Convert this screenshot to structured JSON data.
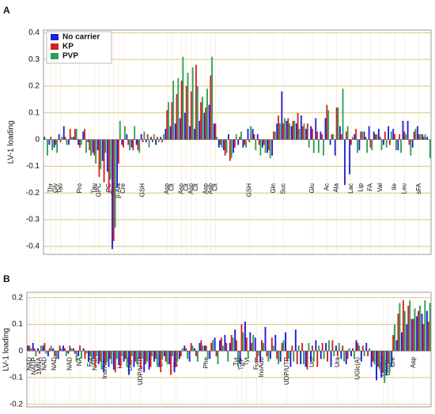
{
  "chart_data": [
    {
      "type": "bar",
      "panel": "A",
      "ylabel": "LV-1 loading",
      "categories": [
        null,
        "Thr",
        "Gly",
        "Tau",
        null,
        null,
        null,
        "Pro",
        null,
        null,
        "Tau",
        "GPC",
        null,
        "PC",
        "Cho",
        "β-Ala",
        "Cre",
        null,
        null,
        null,
        "GSH",
        null,
        null,
        null,
        null,
        "Asp",
        "Cit",
        null,
        "Asp",
        "Cit",
        "Asp",
        "Cit",
        null,
        "Asp",
        "Asp",
        "Cit",
        null,
        null,
        null,
        null,
        null,
        null,
        "GSH",
        null,
        null,
        null,
        null,
        "Gln",
        null,
        "Suc",
        null,
        null,
        null,
        null,
        null,
        "Glu",
        null,
        null,
        "Ac",
        null,
        "Ala",
        null,
        null,
        "Lac",
        null,
        "Lip",
        null,
        "FA",
        null,
        "Val",
        null,
        null,
        "Ile",
        null,
        "Leu",
        null,
        null,
        "sFA",
        null,
        null
      ],
      "series": [
        {
          "name": "No carrier",
          "color": "#1f1fd6",
          "values": [
            0.01,
            -0.02,
            -0.03,
            0.02,
            0.05,
            -0.02,
            0.01,
            -0.02,
            0.03,
            -0.01,
            -0.05,
            -0.04,
            -0.08,
            -0.12,
            -0.41,
            -0.18,
            -0.02,
            0.02,
            -0.03,
            -0.02,
            0.02,
            -0.01,
            0.01,
            -0.02,
            0.01,
            0.04,
            0.05,
            0.06,
            0.08,
            0.1,
            0.05,
            0.04,
            0.07,
            0.1,
            0.13,
            0.06,
            -0.03,
            -0.04,
            0.02,
            -0.05,
            -0.02,
            -0.03,
            0.04,
            0.04,
            0.02,
            -0.03,
            -0.05,
            -0.06,
            0.06,
            0.18,
            0.07,
            0.05,
            0.06,
            0.09,
            0.04,
            0.05,
            0.08,
            0.03,
            0.08,
            -0.02,
            -0.06,
            0.05,
            -0.17,
            -0.13,
            0.02,
            -0.04,
            0.03,
            0.05,
            0.03,
            0.04,
            -0.02,
            0.05,
            0.04,
            -0.04,
            0.07,
            0.07,
            -0.03,
            0.05,
            0.02,
            0.01
          ]
        },
        {
          "name": "KP",
          "color": "#d62020",
          "values": [
            0.0,
            0.01,
            -0.02,
            -0.01,
            0.01,
            0.04,
            0.04,
            -0.03,
            0.04,
            -0.04,
            -0.06,
            -0.14,
            -0.16,
            -0.2,
            -0.38,
            -0.09,
            -0.03,
            -0.02,
            -0.04,
            -0.04,
            -0.01,
            0.02,
            -0.01,
            0.01,
            -0.01,
            0.11,
            0.14,
            0.17,
            0.22,
            0.2,
            0.18,
            0.28,
            0.14,
            0.12,
            0.24,
            0.06,
            -0.02,
            -0.06,
            -0.08,
            -0.03,
            0.01,
            -0.02,
            -0.01,
            0.02,
            -0.02,
            -0.02,
            -0.04,
            0.03,
            0.09,
            0.06,
            0.08,
            0.07,
            0.1,
            0.05,
            0.06,
            0.04,
            0.03,
            0.02,
            0.13,
            0.02,
            0.12,
            0.02,
            0.03,
            -0.02,
            0.04,
            0.03,
            0.01,
            -0.03,
            0.02,
            0.01,
            0.03,
            -0.02,
            0.02,
            0.02,
            0.03,
            -0.02,
            0.03,
            0.02,
            0.01,
            0.0
          ]
        },
        {
          "name": "PVP",
          "color": "#2e9e55",
          "values": [
            -0.06,
            -0.04,
            -0.05,
            0.01,
            -0.02,
            0.01,
            0.04,
            -0.02,
            -0.05,
            -0.06,
            -0.09,
            -0.11,
            -0.05,
            -0.15,
            -0.33,
            0.07,
            0.05,
            -0.04,
            0.05,
            -0.05,
            0.03,
            -0.03,
            0.02,
            -0.01,
            0.02,
            0.14,
            0.22,
            0.23,
            0.31,
            0.25,
            0.27,
            0.2,
            0.16,
            0.19,
            0.31,
            0.01,
            -0.03,
            -0.05,
            -0.07,
            0.02,
            0.03,
            -0.03,
            0.05,
            -0.04,
            -0.06,
            -0.05,
            -0.07,
            0.03,
            0.06,
            0.08,
            0.06,
            0.07,
            0.04,
            0.06,
            -0.03,
            -0.05,
            -0.05,
            -0.06,
            0.11,
            0.02,
            0.12,
            0.19,
            0.05,
            0.01,
            -0.05,
            0.03,
            -0.05,
            -0.04,
            0.02,
            -0.04,
            -0.03,
            0.03,
            -0.04,
            -0.05,
            0.02,
            -0.06,
            0.04,
            0.02,
            0.02,
            -0.07
          ]
        }
      ],
      "ylim": [
        -0.43,
        0.41
      ],
      "yticks": [
        0.4,
        0.3,
        0.2,
        0.1,
        0,
        -0.1,
        -0.2,
        -0.3,
        -0.4
      ],
      "grid": true,
      "legend": "upper left"
    },
    {
      "type": "bar",
      "panel": "B",
      "ylabel": "LV-1 loading",
      "categories": [
        "NAD",
        "NADP",
        "1MNA",
        "NAD",
        null,
        "NAD",
        null,
        null,
        "NAD",
        null,
        "NA",
        null,
        "For",
        "NAD",
        null,
        "Ino/Ado",
        null,
        null,
        "Hxn",
        null,
        "UMP",
        null,
        "UDP/UTP",
        null,
        null,
        null,
        "Urd",
        null,
        null,
        "Ura",
        null,
        null,
        null,
        null,
        null,
        "Phe",
        null,
        null,
        null,
        null,
        null,
        "Tyr",
        "TyrP",
        "Tyr",
        null,
        "Fum",
        "InoAdo",
        null,
        null,
        null,
        null,
        "UDP/UTP",
        null,
        null,
        null,
        null,
        "Urd",
        null,
        null,
        null,
        null,
        "Ura",
        null,
        null,
        null,
        "UGlc(A)",
        null,
        null,
        null,
        null,
        "UNGal",
        "UNGlc",
        "Cre",
        null,
        null,
        null,
        "Asp",
        null,
        null,
        null
      ],
      "series": [
        {
          "color": "#1f1fd6",
          "values": [
            0.02,
            0.03,
            0.01,
            0.02,
            -0.02,
            0.01,
            -0.03,
            0.02,
            -0.01,
            0.01,
            -0.02,
            0.01,
            -0.04,
            -0.03,
            -0.05,
            -0.08,
            -0.06,
            -0.07,
            -0.05,
            -0.04,
            -0.09,
            -0.06,
            -0.03,
            -0.08,
            -0.07,
            -0.04,
            -0.06,
            -0.02,
            -0.05,
            -0.08,
            -0.03,
            0.02,
            -0.04,
            0.01,
            0.03,
            0.02,
            -0.03,
            0.05,
            0.04,
            0.06,
            0.03,
            0.08,
            -0.05,
            0.11,
            0.07,
            0.05,
            -0.04,
            0.09,
            -0.03,
            0.06,
            -0.04,
            0.07,
            -0.06,
            0.08,
            -0.05,
            -0.06,
            -0.04,
            0.04,
            -0.03,
            0.03,
            -0.06,
            0.02,
            -0.03,
            -0.05,
            -0.02,
            0.04,
            -0.04,
            0.03,
            -0.06,
            -0.11,
            -0.1,
            -0.09,
            -0.06,
            0.04,
            0.07,
            0.1,
            0.12,
            0.13,
            0.14,
            0.15
          ]
        },
        {
          "color": "#d62020",
          "values": [
            0.02,
            0.01,
            -0.01,
            0.03,
            0.01,
            -0.02,
            0.02,
            0.01,
            0.02,
            -0.01,
            0.02,
            -0.03,
            -0.02,
            -0.06,
            -0.04,
            -0.05,
            -0.03,
            -0.08,
            -0.06,
            -0.03,
            -0.05,
            -0.04,
            -0.07,
            -0.05,
            -0.06,
            -0.03,
            -0.08,
            -0.04,
            -0.09,
            -0.06,
            -0.02,
            0.01,
            0.03,
            -0.02,
            0.04,
            0.02,
            0.03,
            -0.02,
            0.05,
            0.03,
            0.06,
            0.04,
            0.1,
            0.05,
            0.03,
            -0.04,
            0.04,
            -0.02,
            0.05,
            -0.03,
            0.03,
            -0.04,
            0.02,
            -0.05,
            0.03,
            -0.07,
            0.02,
            -0.06,
            0.03,
            -0.04,
            0.04,
            -0.02,
            0.02,
            -0.03,
            0.01,
            0.03,
            0.02,
            -0.02,
            -0.04,
            -0.06,
            -0.08,
            -0.05,
            0.06,
            0.14,
            0.19,
            0.17,
            0.12,
            0.15,
            0.1,
            0.11
          ]
        },
        {
          "color": "#2e9e55",
          "values": [
            0.01,
            -0.02,
            0.02,
            -0.01,
            0.02,
            -0.03,
            0.01,
            -0.02,
            0.01,
            -0.04,
            -0.03,
            -0.01,
            -0.05,
            -0.02,
            -0.07,
            -0.04,
            -0.05,
            -0.03,
            -0.02,
            -0.06,
            -0.02,
            -0.05,
            -0.03,
            -0.04,
            -0.02,
            -0.06,
            -0.03,
            -0.05,
            -0.02,
            -0.04,
            0.01,
            -0.03,
            0.02,
            -0.04,
            0.02,
            -0.03,
            0.04,
            -0.05,
            0.02,
            -0.04,
            0.05,
            -0.06,
            0.07,
            -0.03,
            0.06,
            -0.02,
            0.03,
            -0.04,
            0.02,
            -0.05,
            0.04,
            -0.03,
            -0.04,
            0.02,
            -0.05,
            0.03,
            -0.04,
            0.02,
            -0.03,
            0.04,
            -0.02,
            0.03,
            -0.04,
            0.01,
            -0.03,
            0.02,
            -0.02,
            0.01,
            -0.05,
            -0.07,
            -0.12,
            -0.08,
            0.1,
            0.18,
            0.15,
            0.19,
            0.16,
            0.17,
            0.19,
            0.18
          ]
        }
      ],
      "ylim": [
        -0.21,
        0.22
      ],
      "yticks": [
        0.2,
        0.1,
        0,
        -0.1,
        -0.2
      ],
      "grid": true
    }
  ]
}
